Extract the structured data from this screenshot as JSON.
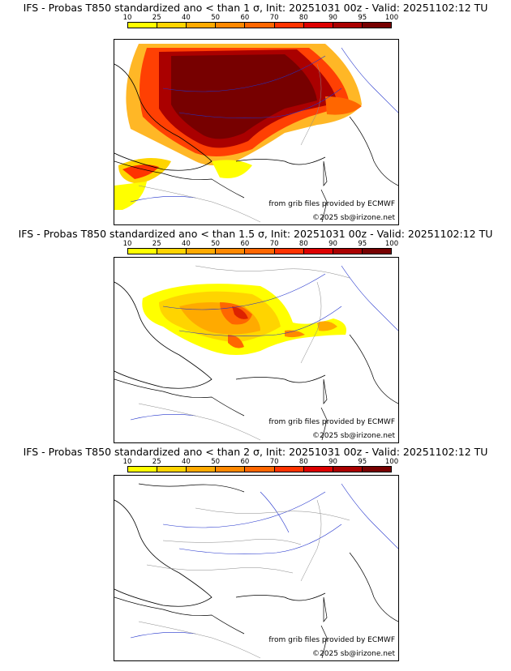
{
  "colorbar": {
    "ticks": [
      "10",
      "25",
      "40",
      "50",
      "60",
      "70",
      "80",
      "90",
      "95",
      "100"
    ],
    "colors": [
      "#ffff00",
      "#ffd400",
      "#ffaa00",
      "#ff8800",
      "#ff6600",
      "#ff3300",
      "#dd0000",
      "#aa0000",
      "#770000"
    ]
  },
  "credits": {
    "source": "from grib files provided by ECMWF",
    "copyright": "©2025 sb@irizone.net"
  },
  "panels": [
    {
      "title": "IFS - Probas T850  standardized ano < than 1 σ, Init: 20251031 00z - Valid: 20251102:12 TU"
    },
    {
      "title": "IFS - Probas T850  standardized ano < than 1.5 σ, Init: 20251031 00z - Valid: 20251102:12 TU"
    },
    {
      "title": "IFS - Probas T850  standardized ano < than 2 σ, Init: 20251031 00z - Valid: 20251102:12 TU"
    }
  ]
}
